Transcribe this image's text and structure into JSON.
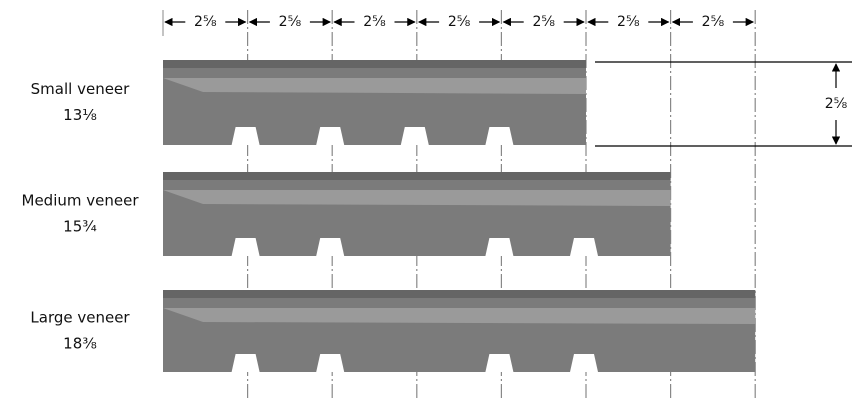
{
  "top_dimensions": [
    "2⅝",
    "2⅝",
    "2⅝",
    "2⅝",
    "2⅝",
    "2⅝",
    "2⅝"
  ],
  "veneers": [
    {
      "name": "Small veneer",
      "length": "13⅛"
    },
    {
      "name": "Medium veneer",
      "length": "15¾"
    },
    {
      "name": "Large veneer",
      "length": "18⅜"
    }
  ],
  "height_dimension": "2⅝"
}
